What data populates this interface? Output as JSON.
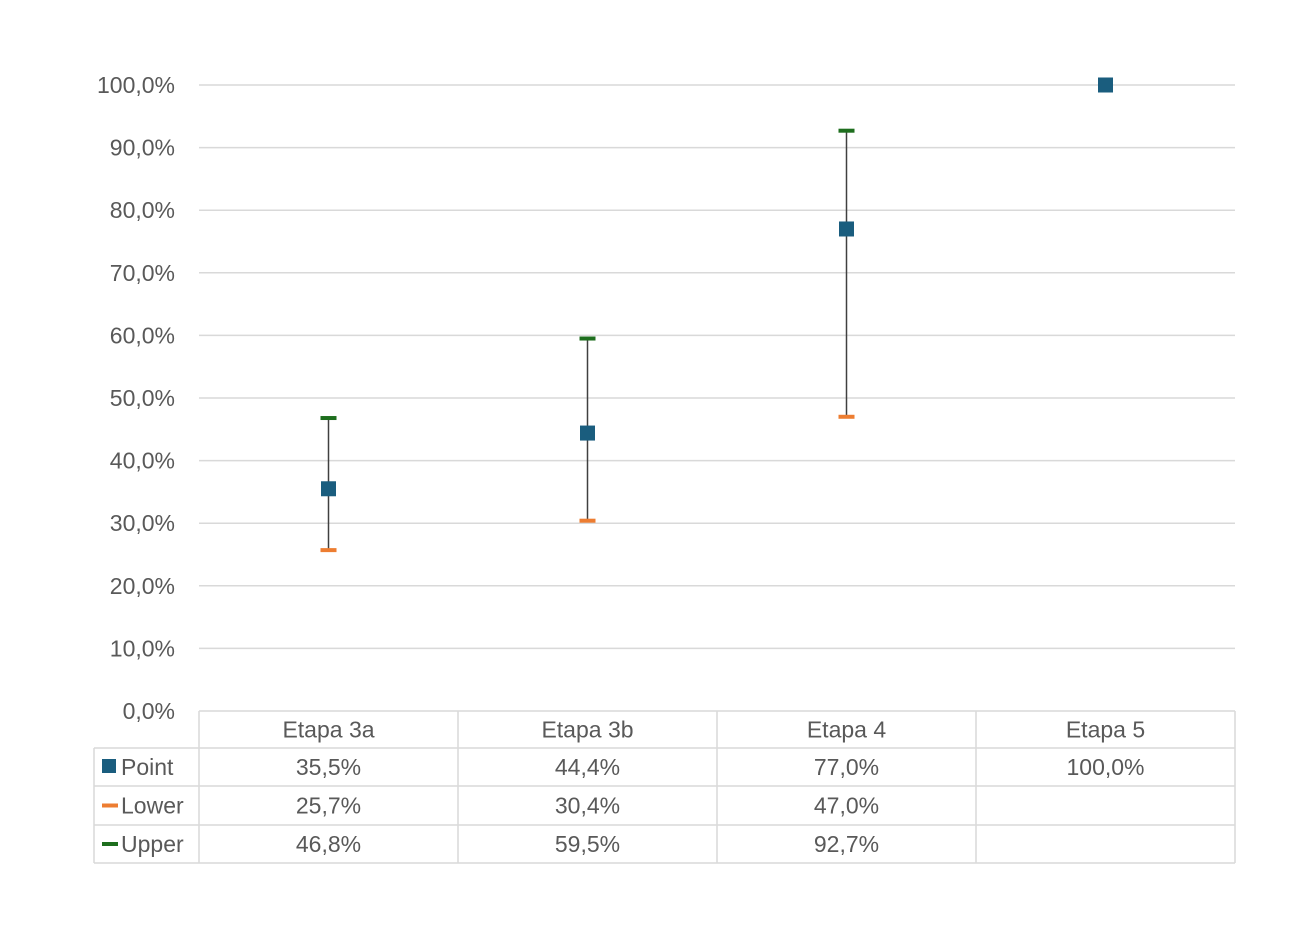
{
  "chart_data": {
    "type": "scatter",
    "title": "",
    "xlabel": "",
    "ylabel": "",
    "ylim": [
      0,
      100
    ],
    "ytick_step": 10,
    "ytick_labels": [
      "0,0%",
      "10,0%",
      "20,0%",
      "30,0%",
      "40,0%",
      "50,0%",
      "60,0%",
      "70,0%",
      "80,0%",
      "90,0%",
      "100,0%"
    ],
    "grid": true,
    "categories": [
      "Etapa 3a",
      "Etapa 3b",
      "Etapa 4",
      "Etapa 5"
    ],
    "series": [
      {
        "name": "Point",
        "values": [
          35.5,
          44.4,
          77.0,
          100.0
        ],
        "labels": [
          "35,5%",
          "44,4%",
          "77,0%",
          "100,0%"
        ],
        "color": "#1a5d7e",
        "marker": "square"
      },
      {
        "name": "Lower",
        "values": [
          25.7,
          30.4,
          47.0,
          null
        ],
        "labels": [
          "25,7%",
          "30,4%",
          "47,0%",
          ""
        ],
        "color": "#ed7d31",
        "marker": "dash"
      },
      {
        "name": "Upper",
        "values": [
          46.8,
          59.5,
          92.7,
          null
        ],
        "labels": [
          "46,8%",
          "59,5%",
          "92,7%",
          ""
        ],
        "color": "#1e6e1e",
        "marker": "dash"
      }
    ],
    "error_bar_color": "#404040",
    "legend": "data-table",
    "data_table": true
  }
}
